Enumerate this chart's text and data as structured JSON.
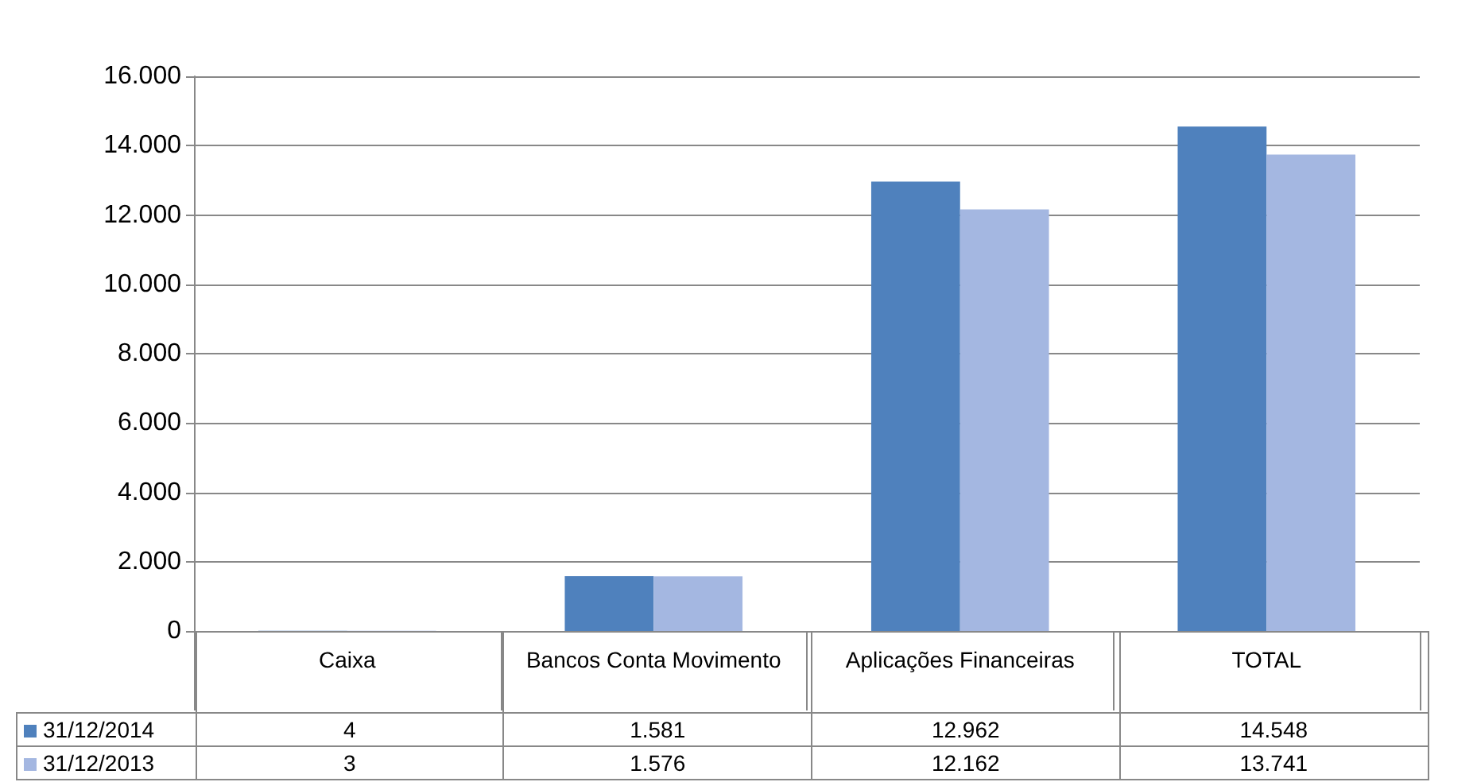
{
  "chart_data": {
    "type": "bar",
    "categories": [
      "Caixa",
      "Bancos Conta Movimento",
      "Aplicações Financeiras",
      "TOTAL"
    ],
    "series": [
      {
        "name": "31/12/2014",
        "color": "#4f81bd",
        "values": [
          4,
          1581,
          12962,
          14548
        ],
        "value_labels": [
          "4",
          "1.581",
          "12.962",
          "14.548"
        ]
      },
      {
        "name": "31/12/2013",
        "color": "#a4b7e1",
        "values": [
          3,
          1576,
          12162,
          13741
        ],
        "value_labels": [
          "3",
          "1.576",
          "12.162",
          "13.741"
        ]
      }
    ],
    "ylim": [
      0,
      16000
    ],
    "yticks": [
      0,
      {
        "value": 2000,
        "label": "2.000"
      },
      {
        "value": 4000,
        "label": "4.000"
      },
      {
        "value": 6000,
        "label": "6.000"
      },
      {
        "value": 8000,
        "label": "8.000"
      },
      {
        "value": 10000,
        "label": "10.000"
      },
      {
        "value": 12000,
        "label": "12.000"
      },
      {
        "value": 14000,
        "label": "14.000"
      },
      {
        "value": 16000,
        "label": "16.000"
      }
    ],
    "grid": "y",
    "legend": "bottom"
  }
}
